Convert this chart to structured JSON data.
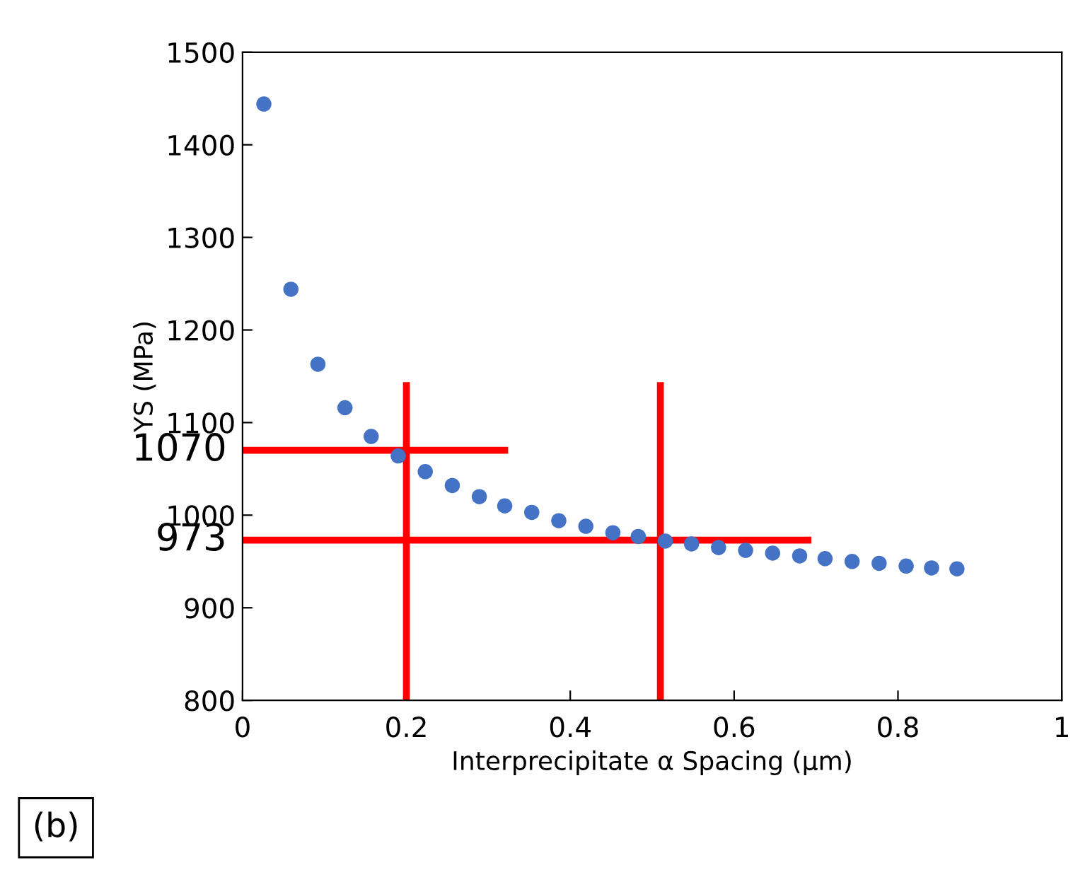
{
  "chart_data": {
    "type": "scatter",
    "xlabel": "Interprecipitate α Spacing (µm)",
    "ylabel": "YS (MPa)",
    "xlim": [
      0,
      1
    ],
    "xticks": [
      0,
      0.2,
      0.4,
      0.6,
      0.8,
      1
    ],
    "ylim": [
      800,
      1500
    ],
    "yticks": [
      800,
      900,
      1000,
      1100,
      1200,
      1300,
      1400,
      1500
    ],
    "grid": false,
    "legend": false,
    "series": [
      {
        "marker": "circle",
        "color": "#4472c4",
        "x": [
          0.026,
          0.059,
          0.092,
          0.125,
          0.157,
          0.19,
          0.223,
          0.256,
          0.289,
          0.32,
          0.353,
          0.386,
          0.419,
          0.452,
          0.483,
          0.516,
          0.548,
          0.581,
          0.614,
          0.647,
          0.68,
          0.711,
          0.744,
          0.777,
          0.81,
          0.841,
          0.872
        ],
        "values": [
          1444,
          1244,
          1163,
          1116,
          1085,
          1064,
          1047,
          1032,
          1020,
          1010,
          1003,
          994,
          988,
          981,
          977,
          972,
          969,
          965,
          962,
          959,
          956,
          953,
          950,
          948,
          945,
          943,
          942
        ]
      },
      {
        "type": "line",
        "color": "#ff0000",
        "x": [
          0.2,
          0.2
        ],
        "values": [
          800,
          1140
        ]
      },
      {
        "type": "line",
        "color": "#ff0000",
        "x": [
          0.51,
          0.51
        ],
        "values": [
          800,
          1140
        ]
      },
      {
        "type": "line",
        "color": "#ff0000",
        "x": [
          0,
          0.32
        ],
        "values": [
          1070,
          1070
        ]
      },
      {
        "type": "line",
        "color": "#ff0000",
        "x": [
          0,
          0.69
        ],
        "values": [
          973,
          973
        ]
      }
    ],
    "annotations": [
      {
        "text": "1070",
        "x": 0,
        "y": 1070
      },
      {
        "text": "973",
        "x": 0,
        "y": 973
      },
      "(b)"
    ]
  }
}
